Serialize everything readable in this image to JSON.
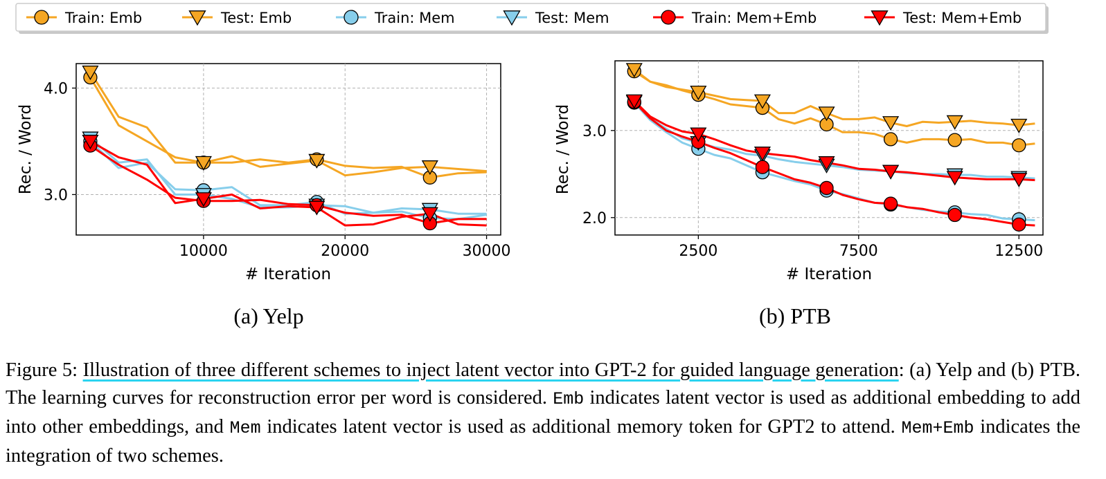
{
  "legend": {
    "entries": [
      {
        "label": "Train: Emb",
        "color": "#f5a623",
        "marker": "circle"
      },
      {
        "label": "Test: Emb",
        "color": "#f5a623",
        "marker": "triangle-down"
      },
      {
        "label": "Train: Mem",
        "color": "#87ceeb",
        "marker": "circle"
      },
      {
        "label": "Test: Mem",
        "color": "#87ceeb",
        "marker": "triangle-down"
      },
      {
        "label": "Train: Mem+Emb",
        "color": "#ff0000",
        "marker": "circle"
      },
      {
        "label": "Test: Mem+Emb",
        "color": "#ff0000",
        "marker": "triangle-down"
      }
    ]
  },
  "chart_data": [
    {
      "type": "line",
      "subcaption": "(a) Yelp",
      "xlabel": "# Iteration",
      "ylabel": "Rec. / Word",
      "xlim": [
        1000,
        31000
      ],
      "ylim": [
        2.62,
        4.23
      ],
      "xticks": [
        10000,
        20000,
        30000
      ],
      "xtick_labels": [
        "10000",
        "20000",
        "30000"
      ],
      "yticks": [
        3.0,
        4.0
      ],
      "ytick_labels": [
        "3.0",
        "4.0"
      ],
      "grid": true,
      "series": [
        {
          "name": "Train: Emb",
          "color": "#f5a623",
          "marker": "circle",
          "x": [
            2000,
            4000,
            6000,
            8000,
            10000,
            12000,
            14000,
            16000,
            18000,
            20000,
            22000,
            24000,
            26000,
            28000,
            30000
          ],
          "y": [
            4.1,
            3.65,
            3.5,
            3.35,
            3.3,
            3.3,
            3.33,
            3.3,
            3.33,
            3.27,
            3.25,
            3.26,
            3.16,
            3.2,
            3.21
          ],
          "marker_x": [
            2000,
            10000,
            18000,
            26000
          ],
          "marker_y": [
            4.1,
            3.3,
            3.33,
            3.16
          ]
        },
        {
          "name": "Test: Emb",
          "color": "#f5a623",
          "marker": "triangle-down",
          "x": [
            2000,
            4000,
            6000,
            8000,
            10000,
            12000,
            14000,
            16000,
            18000,
            20000,
            22000,
            24000,
            26000,
            28000,
            30000
          ],
          "y": [
            4.15,
            3.73,
            3.63,
            3.3,
            3.3,
            3.36,
            3.26,
            3.29,
            3.32,
            3.18,
            3.21,
            3.25,
            3.26,
            3.24,
            3.22
          ],
          "marker_x": [
            2000,
            10000,
            18000,
            26000
          ],
          "marker_y": [
            4.15,
            3.3,
            3.32,
            3.26
          ]
        },
        {
          "name": "Train: Mem",
          "color": "#87ceeb",
          "marker": "circle",
          "x": [
            2000,
            4000,
            6000,
            8000,
            10000,
            12000,
            14000,
            16000,
            18000,
            20000,
            22000,
            24000,
            26000,
            28000,
            30000
          ],
          "y": [
            3.5,
            3.25,
            3.3,
            3.05,
            3.04,
            3.07,
            2.9,
            2.9,
            2.93,
            2.82,
            2.83,
            2.84,
            2.78,
            2.77,
            2.81
          ],
          "marker_x": [
            2000,
            10000,
            18000,
            26000
          ],
          "marker_y": [
            3.5,
            3.04,
            2.93,
            2.78
          ]
        },
        {
          "name": "Test: Mem",
          "color": "#87ceeb",
          "marker": "triangle-down",
          "x": [
            2000,
            4000,
            6000,
            8000,
            10000,
            12000,
            14000,
            16000,
            18000,
            20000,
            22000,
            24000,
            26000,
            28000,
            30000
          ],
          "y": [
            3.53,
            3.3,
            3.33,
            3.0,
            3.0,
            2.96,
            2.88,
            2.88,
            2.9,
            2.89,
            2.83,
            2.87,
            2.86,
            2.82,
            2.82
          ],
          "marker_x": [
            2000,
            10000,
            18000,
            26000
          ],
          "marker_y": [
            3.53,
            3.0,
            2.9,
            2.86
          ]
        },
        {
          "name": "Train: Mem+Emb",
          "color": "#ff0000",
          "marker": "circle",
          "x": [
            2000,
            4000,
            6000,
            8000,
            10000,
            12000,
            14000,
            16000,
            18000,
            20000,
            22000,
            24000,
            26000,
            28000,
            30000
          ],
          "y": [
            3.46,
            3.28,
            3.14,
            2.97,
            2.94,
            2.94,
            2.95,
            2.91,
            2.9,
            2.83,
            2.8,
            2.81,
            2.73,
            2.77,
            2.77
          ],
          "marker_x": [
            2000,
            10000,
            18000,
            26000
          ],
          "marker_y": [
            3.46,
            2.94,
            2.9,
            2.73
          ]
        },
        {
          "name": "Test: Mem+Emb",
          "color": "#ff0000",
          "marker": "triangle-down",
          "x": [
            2000,
            4000,
            6000,
            8000,
            10000,
            12000,
            14000,
            16000,
            18000,
            20000,
            22000,
            24000,
            26000,
            28000,
            30000
          ],
          "y": [
            3.5,
            3.35,
            3.28,
            2.92,
            2.96,
            3.0,
            2.87,
            2.89,
            2.88,
            2.71,
            2.72,
            2.79,
            2.82,
            2.72,
            2.71
          ],
          "marker_x": [
            2000,
            10000,
            18000,
            26000
          ],
          "marker_y": [
            3.5,
            2.96,
            2.88,
            2.82
          ]
        }
      ]
    },
    {
      "type": "line",
      "subcaption": "(b) PTB",
      "xlabel": "# Iteration",
      "ylabel": "Rec. / Word",
      "xlim": [
        -100,
        13250
      ],
      "ylim": [
        1.8,
        3.8
      ],
      "xticks": [
        2500,
        7500,
        12500
      ],
      "xtick_labels": [
        "2500",
        "7500",
        "12500"
      ],
      "yticks": [
        2.0,
        3.0
      ],
      "ytick_labels": [
        "2.0",
        "3.0"
      ],
      "grid": true,
      "series": [
        {
          "name": "Train: Emb",
          "color": "#f5a623",
          "marker": "circle",
          "x": [
            500,
            1000,
            1500,
            2000,
            2500,
            3000,
            3500,
            4000,
            4500,
            5000,
            5500,
            6000,
            6500,
            7000,
            7500,
            8000,
            8500,
            9000,
            9500,
            10000,
            10500,
            11000,
            11500,
            12000,
            12500,
            13000
          ],
          "y": [
            3.68,
            3.56,
            3.52,
            3.46,
            3.41,
            3.36,
            3.3,
            3.28,
            3.26,
            3.13,
            3.08,
            3.14,
            3.07,
            2.98,
            2.98,
            2.96,
            2.9,
            2.86,
            2.9,
            2.9,
            2.89,
            2.9,
            2.86,
            2.86,
            2.83,
            2.85
          ],
          "marker_x": [
            500,
            2500,
            4500,
            6500,
            8500,
            10500,
            12500
          ],
          "marker_y": [
            3.68,
            3.41,
            3.26,
            3.07,
            2.9,
            2.89,
            2.83
          ]
        },
        {
          "name": "Test: Emb",
          "color": "#f5a623",
          "marker": "triangle-down",
          "x": [
            500,
            1000,
            1500,
            2000,
            2500,
            3000,
            3500,
            4000,
            4500,
            5000,
            5500,
            6000,
            6500,
            7000,
            7500,
            8000,
            8500,
            9000,
            9500,
            10000,
            10500,
            11000,
            11500,
            12000,
            12500,
            13000
          ],
          "y": [
            3.7,
            3.56,
            3.5,
            3.47,
            3.44,
            3.4,
            3.36,
            3.35,
            3.34,
            3.2,
            3.2,
            3.28,
            3.2,
            3.13,
            3.13,
            3.15,
            3.09,
            3.05,
            3.1,
            3.09,
            3.1,
            3.11,
            3.09,
            3.08,
            3.06,
            3.08
          ],
          "marker_x": [
            500,
            2500,
            4500,
            6500,
            8500,
            10500,
            12500
          ],
          "marker_y": [
            3.7,
            3.44,
            3.34,
            3.2,
            3.09,
            3.1,
            3.06
          ]
        },
        {
          "name": "Train: Mem",
          "color": "#87ceeb",
          "marker": "circle",
          "x": [
            500,
            1000,
            1500,
            2000,
            2500,
            3000,
            3500,
            4000,
            4500,
            5000,
            5500,
            6000,
            6500,
            7000,
            7500,
            8000,
            8500,
            9000,
            9500,
            10000,
            10500,
            11000,
            11500,
            12000,
            12500,
            13000
          ],
          "y": [
            3.32,
            3.12,
            2.98,
            2.86,
            2.79,
            2.72,
            2.68,
            2.6,
            2.52,
            2.47,
            2.42,
            2.38,
            2.31,
            2.27,
            2.22,
            2.17,
            2.15,
            2.12,
            2.09,
            2.07,
            2.06,
            2.04,
            2.03,
            1.99,
            1.98,
            1.97
          ],
          "marker_x": [
            500,
            2500,
            4500,
            6500,
            8500,
            10500,
            12500
          ],
          "marker_y": [
            3.32,
            2.79,
            2.52,
            2.31,
            2.15,
            2.06,
            1.98
          ]
        },
        {
          "name": "Test: Mem",
          "color": "#87ceeb",
          "marker": "triangle-down",
          "x": [
            500,
            1000,
            1500,
            2000,
            2500,
            3000,
            3500,
            4000,
            4500,
            5000,
            5500,
            6000,
            6500,
            7000,
            7500,
            8000,
            8500,
            9000,
            9500,
            10000,
            10500,
            11000,
            11500,
            12000,
            12500,
            13000
          ],
          "y": [
            3.33,
            3.14,
            3.02,
            2.91,
            2.86,
            2.81,
            2.78,
            2.73,
            2.71,
            2.67,
            2.64,
            2.62,
            2.6,
            2.58,
            2.55,
            2.54,
            2.53,
            2.51,
            2.5,
            2.5,
            2.49,
            2.49,
            2.47,
            2.47,
            2.46,
            2.45
          ],
          "marker_x": [
            500,
            2500,
            4500,
            6500,
            8500,
            10500,
            12500
          ],
          "marker_y": [
            3.33,
            2.86,
            2.71,
            2.6,
            2.53,
            2.49,
            2.46
          ]
        },
        {
          "name": "Train: Mem+Emb",
          "color": "#ff0000",
          "marker": "circle",
          "x": [
            500,
            1000,
            1500,
            2000,
            2500,
            3000,
            3500,
            4000,
            4500,
            5000,
            5500,
            6000,
            6500,
            7000,
            7500,
            8000,
            8500,
            9000,
            9500,
            10000,
            10500,
            11000,
            11500,
            12000,
            12500,
            13000
          ],
          "y": [
            3.33,
            3.14,
            3.0,
            2.93,
            2.87,
            2.8,
            2.74,
            2.66,
            2.58,
            2.51,
            2.44,
            2.4,
            2.34,
            2.26,
            2.21,
            2.17,
            2.16,
            2.12,
            2.1,
            2.06,
            2.03,
            2.0,
            1.98,
            1.95,
            1.92,
            1.91
          ],
          "marker_x": [
            500,
            2500,
            4500,
            6500,
            8500,
            10500,
            12500
          ],
          "marker_y": [
            3.33,
            2.87,
            2.58,
            2.34,
            2.16,
            2.03,
            1.92
          ]
        },
        {
          "name": "Test: Mem+Emb",
          "color": "#ff0000",
          "marker": "triangle-down",
          "x": [
            500,
            1000,
            1500,
            2000,
            2500,
            3000,
            3500,
            4000,
            4500,
            5000,
            5500,
            6000,
            6500,
            7000,
            7500,
            8000,
            8500,
            9000,
            9500,
            10000,
            10500,
            11000,
            11500,
            12000,
            12500,
            13000
          ],
          "y": [
            3.34,
            3.16,
            3.06,
            2.99,
            2.96,
            2.9,
            2.83,
            2.77,
            2.74,
            2.72,
            2.7,
            2.66,
            2.63,
            2.6,
            2.56,
            2.55,
            2.53,
            2.52,
            2.5,
            2.48,
            2.46,
            2.45,
            2.44,
            2.44,
            2.44,
            2.43
          ],
          "marker_x": [
            500,
            2500,
            4500,
            6500,
            8500,
            10500,
            12500
          ],
          "marker_y": [
            3.34,
            2.96,
            2.74,
            2.63,
            2.53,
            2.46,
            2.44
          ]
        }
      ]
    }
  ],
  "caption": {
    "label": "Figure 5: ",
    "highlighted": "Illustration of three different schemes to inject latent vector into GPT-2 for guided language generation",
    "part1": ": (a) Yelp and (b) PTB. The learning curves for reconstruction error per word is considered. ",
    "code_emb": "Emb",
    "part2": " indicates latent vector is used as additional embedding to add into other embeddings, and ",
    "code_mem": "Mem",
    "part3": " indicates latent vector is used as additional memory token for GPT2 to attend. ",
    "code_memb": "Mem+Emb",
    "part4": " indicates the integration of two schemes."
  }
}
